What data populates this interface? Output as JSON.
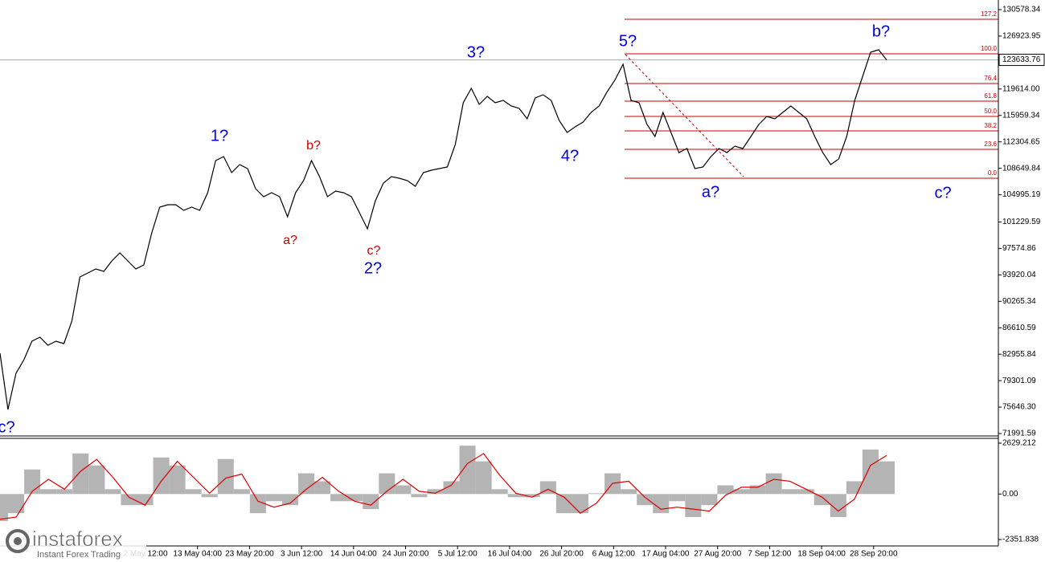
{
  "chart_data": {
    "type": "line",
    "ylim": [
      71659,
      131910
    ],
    "yticks": [
      130578.34,
      126923.95,
      {
        "value": 119614,
        "label": "119614.00"
      },
      115959.34,
      112304.65,
      108649.84,
      104995.19,
      101229.59,
      97574.86,
      93920.04,
      90265.34,
      86610.59,
      82955.84,
      79301.09,
      {
        "value": 75646.3,
        "label": "75646.30"
      },
      71991.59
    ],
    "current_price": 123633.76,
    "price": {
      "color": "#000000",
      "values": [
        83088,
        75320,
        80314,
        82200,
        84752,
        85307,
        84198,
        84752,
        84420,
        87526,
        93629,
        94184,
        94739,
        94406,
        95848,
        96958,
        95848,
        94739,
        95294,
        99732,
        103282,
        103615,
        103615,
        102839,
        103282,
        102839,
        105280,
        109718,
        110273,
        108054,
        109164,
        108609,
        105835,
        104725,
        105280,
        104725,
        101951,
        105280,
        106945,
        109718,
        107499,
        104725,
        105501,
        105280,
        104725,
        102506,
        100287,
        104170,
        106611,
        107499,
        107277,
        106945,
        106168,
        108054,
        108387,
        108609,
        108831,
        111938,
        117708,
        119705,
        117486,
        118595,
        117708,
        118040,
        117264,
        116931,
        115488,
        118373,
        118817,
        118040,
        115266,
        113602,
        114378,
        115044,
        116375,
        117264,
        119206,
        120870,
        123033,
        118040,
        117708,
        114711,
        113047,
        116375,
        113602,
        110828,
        111383,
        108609,
        108831,
        110273,
        111383,
        110828,
        111716,
        111383,
        113047,
        114711,
        115820,
        115488,
        116375,
        117264,
        116375,
        115488,
        113047,
        110828,
        109164,
        109940,
        113047,
        118040,
        121369,
        124698,
        125030,
        123634
      ]
    },
    "fib_color": "#cc0000",
    "fib_levels": [
      {
        "label": "127.2",
        "price": 129247
      },
      {
        "label": "100.0",
        "price": 124476
      },
      {
        "label": "76.4",
        "price": 120370
      },
      {
        "label": "61.8",
        "price": 117930
      },
      {
        "label": "50.0",
        "price": 115821
      },
      {
        "label": "38.2",
        "price": 113823
      },
      {
        "label": "23.6",
        "price": 111271
      },
      {
        "label": "0.0",
        "price": 107277
      }
    ],
    "annotations": [
      {
        "text": "c?",
        "color": "#0000dd"
      },
      {
        "text": "1?",
        "color": "#0000dd"
      },
      {
        "text": "b?",
        "color": "#cc0000"
      },
      {
        "text": "a?",
        "color": "#cc0000"
      },
      {
        "text": "c?",
        "color": "#cc0000"
      },
      {
        "text": "2?",
        "color": "#0000dd"
      },
      {
        "text": "3?",
        "color": "#0000dd"
      },
      {
        "text": "4?",
        "color": "#0000dd"
      },
      {
        "text": "5?",
        "color": "#0000dd"
      },
      {
        "text": "a?",
        "color": "#0000dd"
      },
      {
        "text": "b?",
        "color": "#0000dd"
      },
      {
        "text": "c?",
        "color": "#0000dd"
      }
    ],
    "x_labels": [
      "2 May 12:00",
      "13 May 04:00",
      "23 May 20:00",
      "3 Jun 12:00",
      "14 Jun 04:00",
      "24 Jun 20:00",
      "5 Jul 12:00",
      "16 Jul 04:00",
      "26 Jul 20:00",
      "6 Aug 12:00",
      "17 Aug 04:00",
      "27 Aug 20:00",
      "7 Sep 12:00",
      "18 Sep 04:00",
      "28 Sep 20:00"
    ],
    "oscillator": {
      "ylim": [
        -2684,
        2878
      ],
      "yticks": [
        2629.212,
        {
          "value": 0,
          "label": "0.00"
        },
        -2351.838
      ],
      "histogram": {
        "color": "#b4b4b4",
        "values": [
          -1400,
          -990,
          1270,
          250,
          250,
          2100,
          1480,
          250,
          -575,
          -575,
          1890,
          1480,
          250,
          -165,
          1810,
          250,
          -990,
          -370,
          -575,
          1070,
          660,
          -370,
          -370,
          -780,
          1070,
          450,
          -165,
          250,
          660,
          2500,
          1690,
          250,
          -165,
          -165,
          660,
          -990,
          -990,
          40,
          1070,
          250,
          -575,
          -990,
          -370,
          -1190,
          -575,
          450,
          250,
          450,
          1070,
          250,
          250,
          -575,
          -1190,
          660,
          2300,
          1690
        ]
      },
      "signal": {
        "color": "#dd0000",
        "values": [
          -1300,
          -1195,
          140,
          760,
          250,
          1175,
          1790,
          865,
          -163,
          -575,
          658,
          1685,
          865,
          43,
          823,
          1030,
          -370,
          -680,
          -473,
          248,
          865,
          145,
          -370,
          -575,
          145,
          760,
          143,
          43,
          455,
          1580,
          2095,
          970,
          43,
          -165,
          248,
          -165,
          -990,
          -475,
          555,
          660,
          -163,
          -783,
          -680,
          -780,
          -883,
          -63,
          350,
          350,
          760,
          660,
          250,
          -163,
          -883,
          -265,
          1480,
          1995
        ]
      }
    }
  },
  "watermark": {
    "brand": "instaforex",
    "tagline": "Instant Forex Trading"
  }
}
